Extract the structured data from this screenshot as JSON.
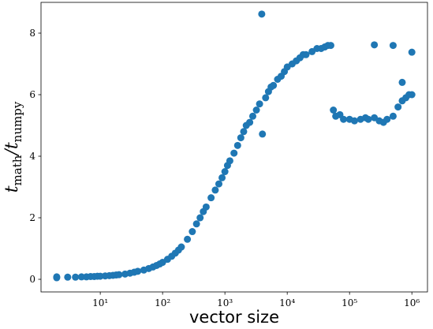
{
  "chart_data": {
    "type": "scatter",
    "xlabel": "vector size",
    "ylabel": "t_math/t_numpy",
    "xscale": "log",
    "xlim": [
      1.12,
      1780000
    ],
    "ylim": [
      -0.41,
      9.0
    ],
    "xticks": [
      {
        "value": 10,
        "label": "10¹"
      },
      {
        "value": 100,
        "label": "10²"
      },
      {
        "value": 1000,
        "label": "10³"
      },
      {
        "value": 10000,
        "label": "10⁴"
      },
      {
        "value": 100000,
        "label": "10⁵"
      },
      {
        "value": 1000000,
        "label": "10⁶"
      }
    ],
    "yticks": [
      0,
      2,
      4,
      6,
      8
    ],
    "grid": false,
    "series": [
      {
        "color": "#1f77b4",
        "x": [
          2,
          2,
          3,
          4,
          5,
          6,
          7,
          8,
          9,
          10,
          12,
          14,
          16,
          18,
          20,
          25,
          30,
          35,
          40,
          50,
          60,
          70,
          80,
          90,
          100,
          120,
          140,
          160,
          180,
          200,
          250,
          300,
          350,
          400,
          450,
          500,
          600,
          700,
          800,
          900,
          1000,
          1100,
          1200,
          1400,
          1600,
          1800,
          2000,
          2200,
          2500,
          2800,
          3200,
          3600,
          3900,
          4000,
          4500,
          5000,
          5500,
          6000,
          7000,
          8000,
          9000,
          10000,
          12000,
          14000,
          16000,
          18000,
          20000,
          25000,
          30000,
          35000,
          40000,
          45000,
          50000,
          55000,
          60000,
          70000,
          80000,
          100000,
          120000,
          150000,
          180000,
          200000,
          250000,
          300000,
          350000,
          400000,
          500000,
          600000,
          700000,
          800000,
          900000,
          1000000,
          250000,
          500000,
          1000000,
          700000
        ],
        "values": [
          0.05,
          0.08,
          0.07,
          0.07,
          0.08,
          0.08,
          0.09,
          0.09,
          0.1,
          0.1,
          0.11,
          0.12,
          0.13,
          0.14,
          0.15,
          0.17,
          0.2,
          0.23,
          0.26,
          0.3,
          0.35,
          0.4,
          0.45,
          0.5,
          0.55,
          0.65,
          0.75,
          0.85,
          0.95,
          1.05,
          1.3,
          1.55,
          1.8,
          2.0,
          2.2,
          2.35,
          2.65,
          2.9,
          3.1,
          3.3,
          3.5,
          3.7,
          3.85,
          4.1,
          4.35,
          4.6,
          4.8,
          5.0,
          5.1,
          5.3,
          5.5,
          5.7,
          8.62,
          4.72,
          5.9,
          6.1,
          6.25,
          6.3,
          6.5,
          6.6,
          6.75,
          6.9,
          7.0,
          7.1,
          7.2,
          7.3,
          7.3,
          7.4,
          7.5,
          7.5,
          7.55,
          7.6,
          7.6,
          5.5,
          5.3,
          5.35,
          5.2,
          5.2,
          5.15,
          5.2,
          5.25,
          5.2,
          5.25,
          5.15,
          5.1,
          5.2,
          5.3,
          5.6,
          5.8,
          5.9,
          6.0,
          6.0,
          7.62,
          7.6,
          7.38,
          6.4
        ]
      }
    ]
  }
}
